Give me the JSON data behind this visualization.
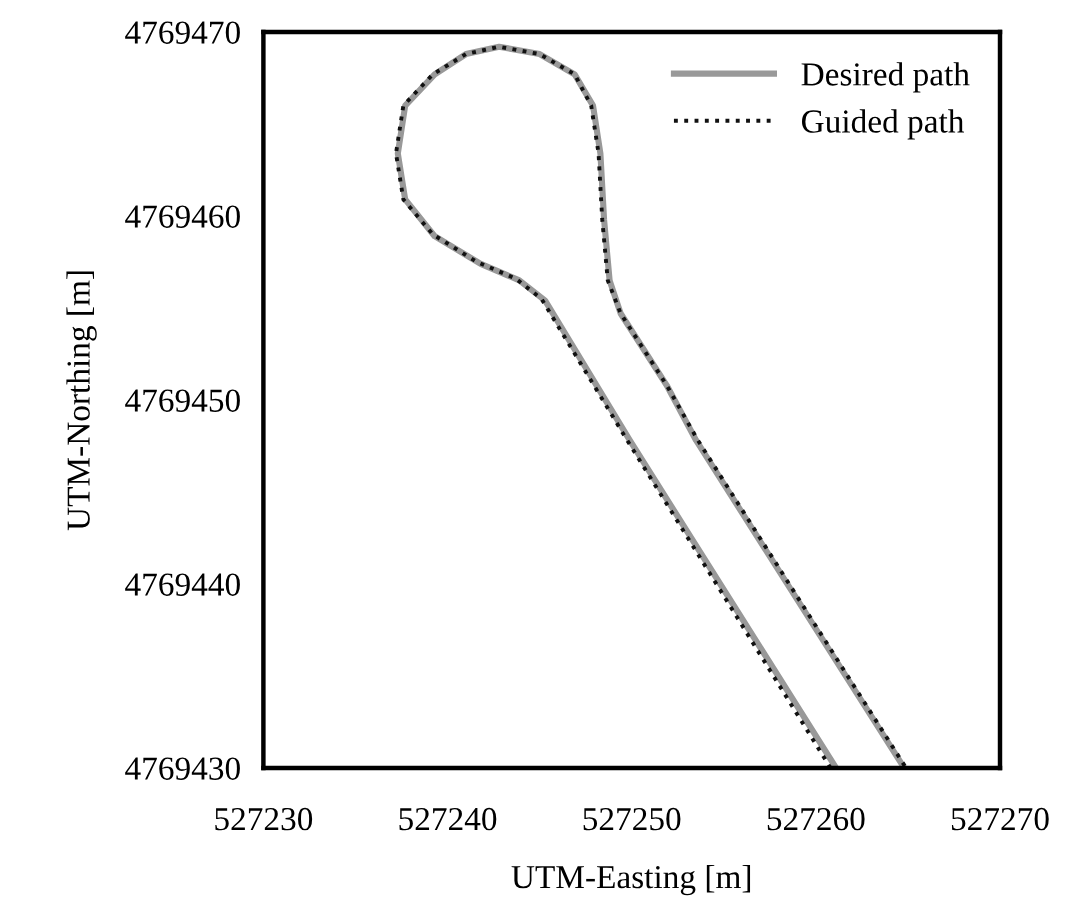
{
  "chart_data": {
    "type": "line",
    "xlabel": "UTM-Easting [m]",
    "ylabel": "UTM-Northing [m]",
    "xlim": [
      527230,
      527270
    ],
    "ylim": [
      4769430,
      4769470
    ],
    "xticks": [
      527230,
      527240,
      527250,
      527260,
      527270
    ],
    "yticks": [
      4769430,
      4769440,
      4769450,
      4769460,
      4769470
    ],
    "grid": false,
    "legend": "top right",
    "marker": "none",
    "series": [
      {
        "name": "Desired path",
        "color": "#999999",
        "line_style": "solid",
        "x": [
          527261.1,
          527249.9,
          527245.3,
          527243.9,
          527241.8,
          527239.3,
          527237.7,
          527237.3,
          527237.7,
          527239.3,
          527241.0,
          527242.8,
          527245.0,
          527246.9,
          527247.9,
          527248.3,
          527248.5,
          527248.8,
          527249.4,
          527251.9,
          527253.5,
          527264.8
        ],
        "values": [
          4769430.0,
          4769447.8,
          4769455.4,
          4769456.5,
          4769457.4,
          4769458.9,
          4769460.9,
          4769463.4,
          4769466.0,
          4769467.7,
          4769468.8,
          4769469.2,
          4769468.8,
          4769467.7,
          4769466.0,
          4769463.4,
          4769459.8,
          4769456.5,
          4769454.7,
          4769450.8,
          4769447.8,
          4769430.0
        ]
      },
      {
        "name": "Guided path",
        "color": "#111111",
        "line_style": "dotted",
        "x": [
          527260.8,
          527249.7,
          527245.1,
          527243.7,
          527241.6,
          527239.2,
          527237.6,
          527237.2,
          527237.6,
          527239.2,
          527241.0,
          527242.8,
          527245.0,
          527246.9,
          527247.8,
          527248.2,
          527248.4,
          527248.7,
          527249.4,
          527251.9,
          527253.6,
          527264.9
        ],
        "values": [
          4769430.0,
          4769447.9,
          4769455.5,
          4769456.6,
          4769457.5,
          4769459.0,
          4769460.9,
          4769463.4,
          4769466.0,
          4769467.7,
          4769468.8,
          4769469.2,
          4769468.8,
          4769467.7,
          4769466.0,
          4769463.4,
          4769459.8,
          4769456.5,
          4769454.7,
          4769450.8,
          4769447.8,
          4769430.0
        ]
      }
    ]
  }
}
